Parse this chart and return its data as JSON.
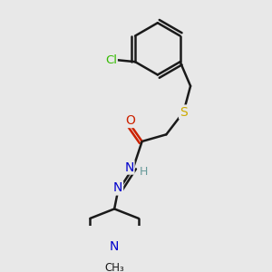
{
  "background_color": "#e8e8e8",
  "bond_color": "#1a1a1a",
  "bond_width": 1.8,
  "atom_colors": {
    "C": "#1a1a1a",
    "N": "#0000cc",
    "O": "#cc2200",
    "S": "#ccaa00",
    "Cl": "#33bb00",
    "H": "#669999"
  },
  "font_size_atoms": 10,
  "font_size_small": 8.5
}
